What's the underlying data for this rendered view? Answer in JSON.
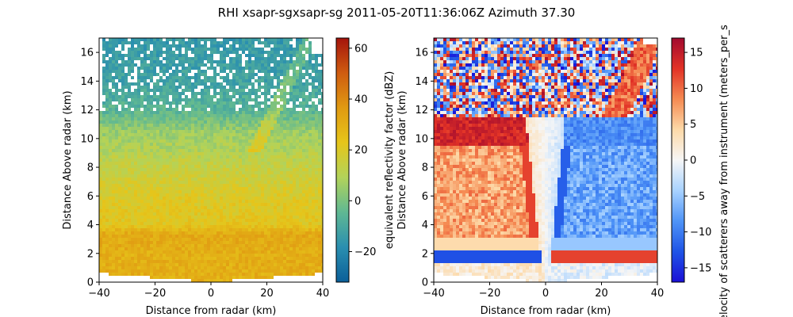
{
  "figure": {
    "title": "RHI xsapr-sgxsapr-sg 2011-05-20T11:36:06Z Azimuth 37.30"
  },
  "chart_data": [
    {
      "type": "heatmap",
      "field": "reflectivity",
      "xlabel": "Distance from radar (km)",
      "ylabel": "Distance Above radar  (km)",
      "xlim": [
        -40,
        40
      ],
      "ylim": [
        0,
        17
      ],
      "xticks": [
        -40,
        -20,
        0,
        20,
        40
      ],
      "yticks": [
        0,
        2,
        4,
        6,
        8,
        10,
        12,
        14,
        16
      ],
      "colorbar": {
        "label": "equivalent reflectivity factor (dBZ)",
        "range": [
          -32,
          64
        ],
        "ticks": [
          -20,
          0,
          20,
          40,
          60
        ],
        "colormap": "HomeyerRainbow"
      },
      "colors": [
        "#0b5f99",
        "#2a8fb0",
        "#5fb893",
        "#b2d35a",
        "#e6c51a",
        "#e09a12",
        "#cf5c10",
        "#a5140c"
      ],
      "profile": [
        {
          "height": 0.3,
          "dbz": 30
        },
        {
          "height": 2.0,
          "dbz": 30
        },
        {
          "height": 3.3,
          "dbz": 32
        },
        {
          "height": 4.0,
          "dbz": 22
        },
        {
          "height": 6.0,
          "dbz": 20
        },
        {
          "height": 8.5,
          "dbz": 12
        },
        {
          "height": 10.5,
          "dbz": 5
        },
        {
          "height": 12.0,
          "dbz": -6
        },
        {
          "height": 14.0,
          "dbz": -12
        },
        {
          "height": 17.0,
          "dbz": -15
        }
      ]
    },
    {
      "type": "heatmap",
      "field": "velocity",
      "xlabel": "Distance from radar (km)",
      "ylabel": "Distance Above radar  (km)",
      "xlim": [
        -40,
        40
      ],
      "ylim": [
        0,
        17
      ],
      "xticks": [
        -40,
        -20,
        0,
        20,
        40
      ],
      "yticks": [
        0,
        2,
        4,
        6,
        8,
        10,
        12,
        14,
        16
      ],
      "colorbar": {
        "label": "velocity of scatterers away from instrument (meters_per_s",
        "range": [
          -17,
          17
        ],
        "ticks": [
          -15,
          -10,
          -5,
          0,
          5,
          10,
          15
        ],
        "colormap": "BuDRd18"
      },
      "colors": [
        "#1a0fd6",
        "#1f54e6",
        "#4f94f7",
        "#a8d2ff",
        "#f6f6f6",
        "#fdd9a8",
        "#f58a52",
        "#e23226",
        "#a20a2f"
      ],
      "left_side_ms": 8,
      "right_side_ms": -8
    }
  ]
}
